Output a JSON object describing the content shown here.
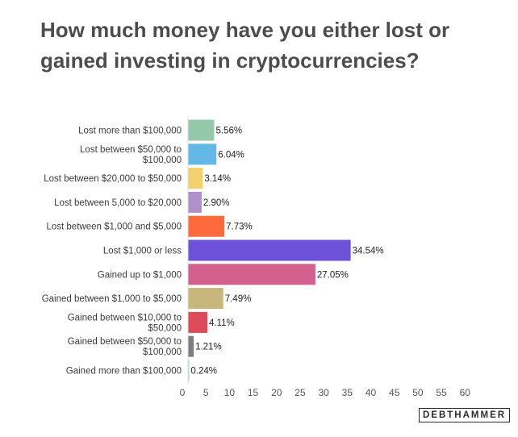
{
  "chart_data": {
    "type": "bar",
    "orientation": "horizontal",
    "title": "How much money have you either lost or gained investing in cryptocurrencies?",
    "categories": [
      [
        "Lost more than $100,000"
      ],
      [
        "Lost between $50,000 to",
        "$100,000"
      ],
      [
        "Lost between $20,000 to $50,000"
      ],
      [
        "Lost between 5,000 to $20,000"
      ],
      [
        "Lost between $1,000 and $5,000"
      ],
      [
        "Lost $1,000 or less"
      ],
      [
        "Gained up to $1,000"
      ],
      [
        "Gained between $1,000 to $5,000"
      ],
      [
        "Gained between $10,000 to",
        "$50,000"
      ],
      [
        "Gained between $50,000 to",
        "$100,000"
      ],
      [
        "Gained more than $100,000"
      ]
    ],
    "values": [
      5.56,
      6.04,
      3.14,
      2.9,
      7.73,
      34.54,
      27.05,
      7.49,
      4.11,
      1.21,
      0.24
    ],
    "value_labels": [
      "5.56%",
      "6.04%",
      "3.14%",
      "2.90%",
      "7.73%",
      "34.54%",
      "27.05%",
      "7.49%",
      "4.11%",
      "1.21%",
      "0.24%"
    ],
    "colors": [
      "#93c9a8",
      "#63b8e6",
      "#f2d06b",
      "#b08fca",
      "#ff6a3d",
      "#6d52d9",
      "#d4608e",
      "#c8b77a",
      "#de4a5a",
      "#7b7f84",
      "#a8dcc0"
    ],
    "xlim": [
      0,
      60
    ],
    "xticks": [
      0,
      5,
      10,
      15,
      20,
      25,
      30,
      35,
      40,
      45,
      50,
      55,
      60
    ],
    "grid": false,
    "legend": "none"
  },
  "brand": "DEBTHAMMER"
}
